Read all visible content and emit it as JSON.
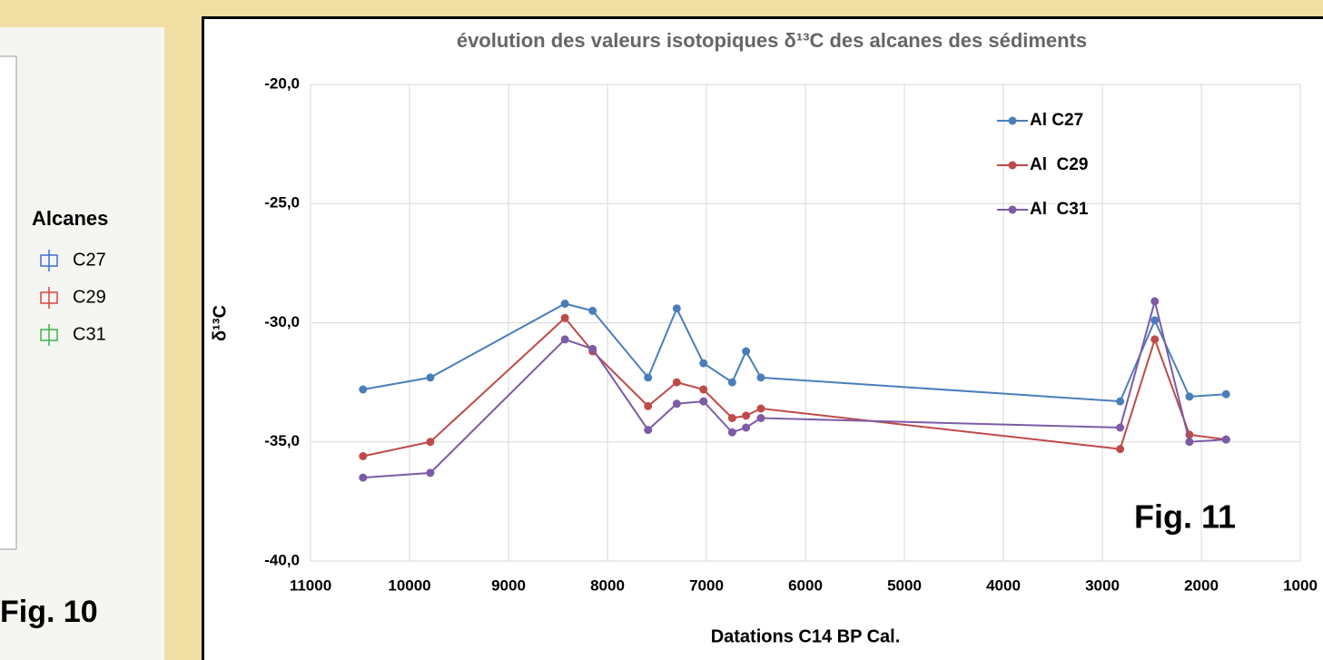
{
  "left_panel": {
    "legend_title": "Alcanes",
    "legend": [
      {
        "name": "C27",
        "color": "#3b6fd8"
      },
      {
        "name": "C29",
        "color": "#d84545"
      },
      {
        "name": "C31",
        "color": "#3bb54a"
      }
    ],
    "figure_label": "Fig. 10"
  },
  "chart_data": {
    "type": "line",
    "title": "évolution des valeurs isotopiques δ¹³C des alcanes des sédiments",
    "x_label": "Datations C14  BP Cal.",
    "y_label": "δ¹³C",
    "annotation": "Fig. 11",
    "x": [
      10470,
      9790,
      8430,
      8150,
      7590,
      7300,
      7030,
      6740,
      6600,
      6450,
      2820,
      2470,
      2120,
      1750
    ],
    "series": [
      {
        "name": "Al C27",
        "color": "#4a7ebb",
        "values": [
          -32.8,
          -32.3,
          -29.2,
          -29.5,
          -32.3,
          -29.4,
          -31.7,
          -32.5,
          -31.2,
          -32.3,
          -33.3,
          -29.9,
          -33.1,
          -33.0
        ]
      },
      {
        "name": "Al  C29",
        "color": "#be4b48",
        "values": [
          -35.6,
          -35.0,
          -29.8,
          -31.2,
          -33.5,
          -32.5,
          -32.8,
          -34.0,
          -33.9,
          -33.6,
          -35.3,
          -30.7,
          -34.7,
          -34.9
        ]
      },
      {
        "name": "Al  C31",
        "color": "#7d5ba6",
        "values": [
          -36.5,
          -36.3,
          -30.7,
          -31.1,
          -34.5,
          -33.4,
          -33.3,
          -34.6,
          -34.4,
          -34.0,
          -34.4,
          -29.1,
          -35.0,
          -34.9
        ]
      }
    ],
    "xlim": [
      11000,
      1000
    ],
    "xticks": [
      11000,
      10000,
      9000,
      8000,
      7000,
      6000,
      5000,
      4000,
      3000,
      2000,
      1000
    ],
    "ylim": [
      -40,
      -20
    ],
    "yticks": [
      {
        "value": -40,
        "label": "-40,0"
      },
      {
        "value": -35,
        "label": "-35,0"
      },
      {
        "value": -30,
        "label": "-30,0"
      },
      {
        "value": -25,
        "label": "-25,0"
      },
      {
        "value": -20,
        "label": "-20,0"
      }
    ],
    "grid": true,
    "legend": "upper right"
  }
}
